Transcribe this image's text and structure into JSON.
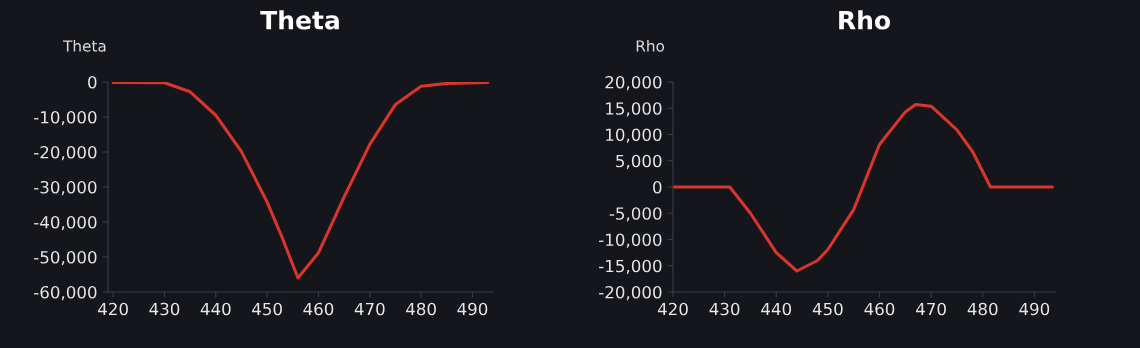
{
  "chart_data": [
    {
      "type": "line",
      "title": "Theta",
      "ylabel": "Theta",
      "color": "#d9352c",
      "x": [
        420,
        430,
        435,
        440,
        445,
        450,
        453,
        456,
        460,
        465,
        470,
        475,
        480,
        485,
        493
      ],
      "values": [
        -100,
        -200,
        -2800,
        -9500,
        -19900,
        -34300,
        -44700,
        -56000,
        -48800,
        -32800,
        -17800,
        -6400,
        -1200,
        -400,
        -100
      ],
      "xlim": [
        419,
        494
      ],
      "xticks": [
        420,
        430,
        440,
        450,
        460,
        470,
        480,
        490
      ],
      "ylim": [
        -60000,
        0
      ],
      "yticks": [
        {
          "value": 0,
          "label": "0"
        },
        {
          "value": -10000,
          "label": "-10,000"
        },
        {
          "value": -20000,
          "label": "-20,000"
        },
        {
          "value": -30000,
          "label": "-30,000"
        },
        {
          "value": -40000,
          "label": "-40,000"
        },
        {
          "value": -50000,
          "label": "-50,000"
        },
        {
          "value": -60000,
          "label": "-60,000"
        }
      ],
      "grid": false,
      "legend": false
    },
    {
      "type": "line",
      "title": "Rho",
      "ylabel": "Rho",
      "color": "#d9352c",
      "x": [
        420,
        431,
        435,
        440,
        444,
        448,
        450,
        455,
        460,
        465,
        467,
        470,
        475,
        478,
        481.5,
        485,
        493.5
      ],
      "values": [
        0,
        0,
        -5000,
        -12500,
        -16000,
        -14000,
        -11900,
        -4300,
        8100,
        14300,
        15700,
        15400,
        10900,
        6800,
        0,
        0,
        0
      ],
      "xlim": [
        420,
        494
      ],
      "xticks": [
        420,
        430,
        440,
        450,
        460,
        470,
        480,
        490
      ],
      "ylim": [
        -20000,
        20000
      ],
      "yticks": [
        {
          "value": 20000,
          "label": "20,000"
        },
        {
          "value": 15000,
          "label": "15,000"
        },
        {
          "value": 10000,
          "label": "10,000"
        },
        {
          "value": 5000,
          "label": "5,000"
        },
        {
          "value": 0,
          "label": "0"
        },
        {
          "value": -5000,
          "label": "-5,000"
        },
        {
          "value": -10000,
          "label": "-10,000"
        },
        {
          "value": -15000,
          "label": "-15,000"
        },
        {
          "value": -20000,
          "label": "-20,000"
        }
      ],
      "grid": false,
      "legend": false
    }
  ]
}
